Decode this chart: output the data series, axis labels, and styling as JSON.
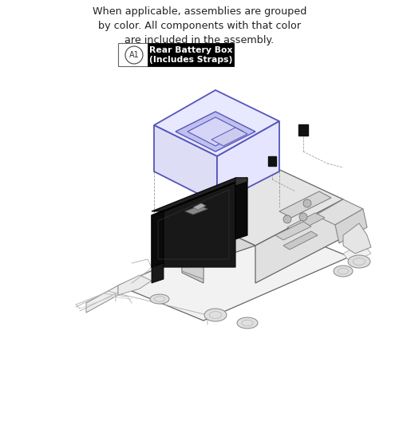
{
  "bg_color": "#ffffff",
  "header_text": "When applicable, assemblies are grouped\nby color. All components with that color\nare included in the assembly.",
  "header_fontsize": 9.2,
  "legend_label_text": "Rear Battery Box\n(Includes Straps)",
  "legend_circle_label": "A1",
  "drawing_color_blue": "#5555bb",
  "drawing_color_dark": "#1a1a1a",
  "drawing_color_gray": "#888888",
  "drawing_color_ec": "#555555",
  "drawing_color_light": "#e8e8e8"
}
